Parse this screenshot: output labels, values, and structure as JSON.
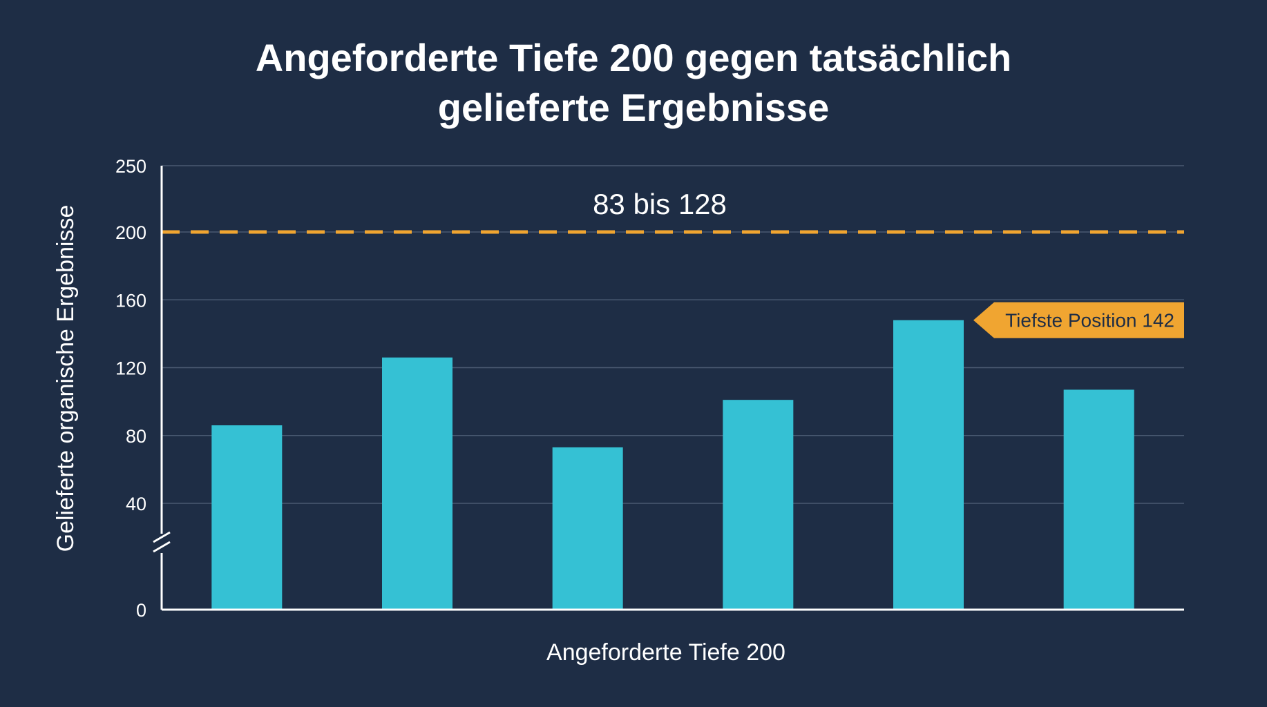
{
  "chart_data": {
    "type": "bar",
    "title_lines": [
      "Angeforderte Tiefe 200 gegen tatsächlich",
      "gelieferte Ergebnisse"
    ],
    "xlabel": "Angeforderte Tiefe 200",
    "ylabel": "Gelieferte organische Ergebnisse",
    "y_ticks": [
      0,
      40,
      80,
      120,
      160,
      200,
      250
    ],
    "y_axis_break": true,
    "grid": true,
    "series": [
      {
        "values": [
          86,
          126,
          73,
          101,
          148,
          107
        ]
      }
    ],
    "reference_line": {
      "value": 200,
      "style": "dashed"
    },
    "range_annotation": "83 bis 128",
    "callout": {
      "text": "Tiefste Position 142",
      "bar_index": 4
    },
    "colors": {
      "background": "#1e2d45",
      "bar": "#35c1d4",
      "reference": "#f0a531",
      "grid": "#4a5a72",
      "axis": "#ffffff"
    }
  }
}
